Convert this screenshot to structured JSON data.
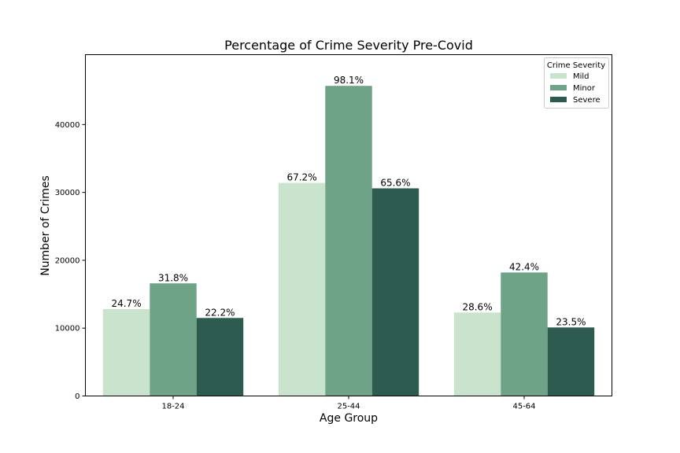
{
  "chart_data": {
    "type": "bar",
    "title": "Percentage of Crime Severity Pre-Covid",
    "xlabel": "Age Group",
    "ylabel": "Number of Crimes",
    "categories": [
      "18-24",
      "25-44",
      "45-64"
    ],
    "ylim": [
      0,
      50300
    ],
    "yticks": [
      0,
      10000,
      20000,
      30000,
      40000
    ],
    "ytick_labels": [
      "0",
      "10000",
      "20000",
      "30000",
      "40000"
    ],
    "grid": false,
    "legend": {
      "title": "Crime Severity",
      "placement": "top-right"
    },
    "series": [
      {
        "name": "Mild",
        "color": "#cae3cd",
        "values": [
          12800,
          31400,
          12300
        ],
        "labels": [
          "24.7%",
          "67.2%",
          "28.6%"
        ]
      },
      {
        "name": "Minor",
        "color": "#6fa388",
        "values": [
          16600,
          45700,
          18200
        ],
        "labels": [
          "31.8%",
          "98.1%",
          "42.4%"
        ]
      },
      {
        "name": "Severe",
        "color": "#2d5b50",
        "values": [
          11500,
          30600,
          10100
        ],
        "labels": [
          "22.2%",
          "65.6%",
          "23.5%"
        ]
      }
    ]
  }
}
